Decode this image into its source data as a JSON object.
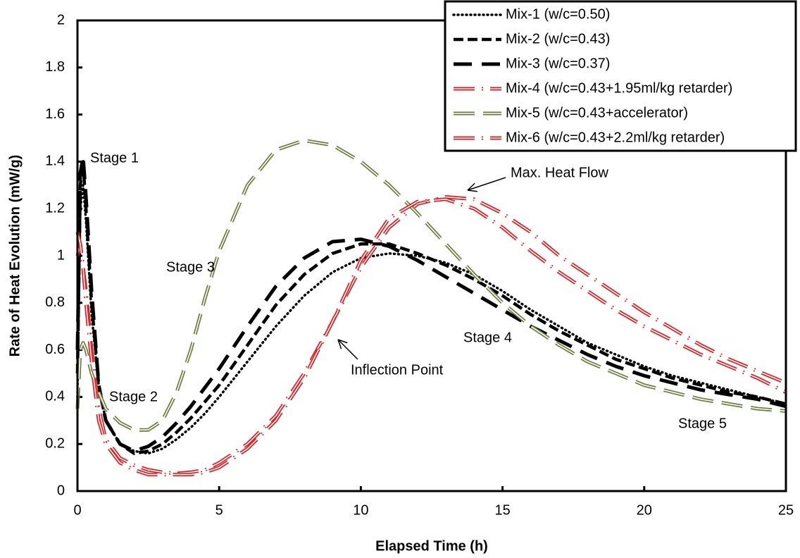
{
  "chart_data": {
    "type": "line",
    "x_label": "Elapsed Time (h)",
    "y_label": "Rate of Heat Evolution (mW/g)",
    "xlim": [
      0,
      25
    ],
    "xticks": [
      0,
      5,
      10,
      15,
      20,
      25
    ],
    "ylim": [
      0,
      2
    ],
    "yticks": [
      0,
      0.2,
      0.4,
      0.6,
      0.8,
      1,
      1.2,
      1.4,
      1.6,
      1.8,
      2
    ],
    "grid": false,
    "legend": "top-right",
    "x": [
      0,
      0.1,
      0.2,
      0.3,
      0.5,
      0.75,
      1,
      1.5,
      2,
      2.5,
      3,
      3.5,
      4,
      4.5,
      5,
      6,
      7,
      8,
      9,
      10,
      11,
      12,
      13,
      14,
      15,
      16,
      17,
      18,
      19,
      20,
      21,
      22,
      23,
      24,
      25
    ],
    "series": [
      {
        "name": "Mix-1 (w/c=0.50)",
        "color": "#000000",
        "style": "dotted",
        "values": [
          0.4,
          1.2,
          1.3,
          1.15,
          0.75,
          0.45,
          0.3,
          0.2,
          0.17,
          0.16,
          0.18,
          0.22,
          0.27,
          0.33,
          0.4,
          0.55,
          0.7,
          0.83,
          0.93,
          0.99,
          1.01,
          1.0,
          0.97,
          0.92,
          0.85,
          0.77,
          0.7,
          0.63,
          0.58,
          0.53,
          0.49,
          0.46,
          0.43,
          0.4,
          0.37
        ]
      },
      {
        "name": "Mix-2 (w/c=0.43)",
        "color": "#000000",
        "style": "dashed",
        "values": [
          0.5,
          1.3,
          1.4,
          1.2,
          0.8,
          0.45,
          0.3,
          0.2,
          0.16,
          0.17,
          0.2,
          0.25,
          0.31,
          0.38,
          0.45,
          0.62,
          0.79,
          0.92,
          1.01,
          1.05,
          1.05,
          1.01,
          0.96,
          0.9,
          0.83,
          0.75,
          0.68,
          0.62,
          0.56,
          0.52,
          0.48,
          0.45,
          0.42,
          0.4,
          0.37
        ]
      },
      {
        "name": "Mix-3 (w/c=0.37)",
        "color": "#000000",
        "style": "long-dash",
        "values": [
          0.6,
          1.35,
          1.42,
          1.25,
          0.85,
          0.45,
          0.3,
          0.2,
          0.17,
          0.19,
          0.23,
          0.29,
          0.36,
          0.44,
          0.52,
          0.7,
          0.87,
          0.99,
          1.06,
          1.07,
          1.04,
          0.98,
          0.91,
          0.84,
          0.77,
          0.7,
          0.64,
          0.58,
          0.53,
          0.49,
          0.46,
          0.43,
          0.41,
          0.39,
          0.36
        ]
      },
      {
        "name": "Mix-4 (w/c=0.43+1.95ml/kg retarder)",
        "color": "#e31a1c",
        "style": "double-dash-dot",
        "values": [
          1.0,
          1.05,
          0.95,
          0.85,
          0.6,
          0.35,
          0.22,
          0.14,
          0.11,
          0.09,
          0.08,
          0.075,
          0.08,
          0.09,
          0.12,
          0.2,
          0.32,
          0.5,
          0.72,
          0.95,
          1.12,
          1.22,
          1.25,
          1.24,
          1.18,
          1.1,
          1.0,
          0.92,
          0.84,
          0.76,
          0.69,
          0.62,
          0.56,
          0.51,
          0.46
        ]
      },
      {
        "name": "Mix-5 (w/c=0.43+accelerator)",
        "color": "#6b7d3a",
        "style": "double-dash",
        "values": [
          0.35,
          0.6,
          0.63,
          0.6,
          0.5,
          0.42,
          0.35,
          0.29,
          0.26,
          0.26,
          0.3,
          0.42,
          0.6,
          0.82,
          1.02,
          1.3,
          1.45,
          1.49,
          1.47,
          1.4,
          1.3,
          1.18,
          1.05,
          0.92,
          0.8,
          0.7,
          0.62,
          0.55,
          0.5,
          0.45,
          0.42,
          0.39,
          0.37,
          0.35,
          0.34
        ]
      },
      {
        "name": "Mix-6 (w/c=0.43+2.2ml/kg retarder)",
        "color": "#e31a1c",
        "style": "double-dash-dot",
        "values": [
          1.1,
          1.05,
          0.95,
          0.8,
          0.55,
          0.3,
          0.2,
          0.12,
          0.09,
          0.07,
          0.07,
          0.07,
          0.07,
          0.08,
          0.1,
          0.18,
          0.3,
          0.48,
          0.72,
          0.98,
          1.16,
          1.23,
          1.24,
          1.2,
          1.12,
          1.02,
          0.93,
          0.85,
          0.77,
          0.7,
          0.64,
          0.58,
          0.53,
          0.48,
          0.42
        ]
      }
    ],
    "annotations": [
      "Stage 1",
      "Stage 2",
      "Stage 3",
      "Stage 4",
      "Stage 5",
      "Max. Heat Flow",
      "Inflection Point"
    ]
  }
}
